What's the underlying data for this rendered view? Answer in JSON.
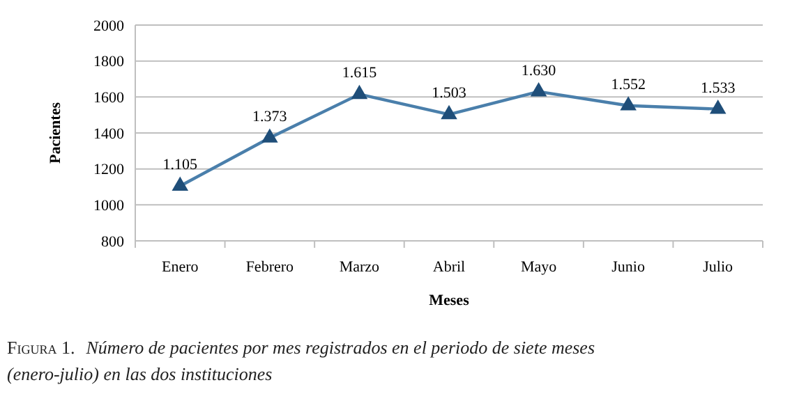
{
  "chart_data": {
    "type": "line",
    "xlabel": "Meses",
    "ylabel": "Pacientes",
    "categories": [
      "Enero",
      "Febrero",
      "Marzo",
      "Abril",
      "Mayo",
      "Junio",
      "Julio"
    ],
    "series": [
      {
        "color": "#4a7fab",
        "values": [
          1105,
          1373,
          1615,
          1503,
          1630,
          1552,
          1533
        ],
        "value_labels": [
          "1.105",
          "1.373",
          "1.615",
          "1.503",
          "1.630",
          "1.552",
          "1.533"
        ]
      }
    ],
    "ylim": [
      800,
      2000
    ],
    "yticks": [
      800,
      1000,
      1200,
      1400,
      1600,
      1800,
      2000
    ],
    "grid": "y",
    "marker": "triangle",
    "line_style": "solid",
    "annotations": [
      "Figura 1.",
      "Número de pacientes por mes registrados en el periodo de siete meses (enero-julio) en las dos instituciones"
    ]
  }
}
